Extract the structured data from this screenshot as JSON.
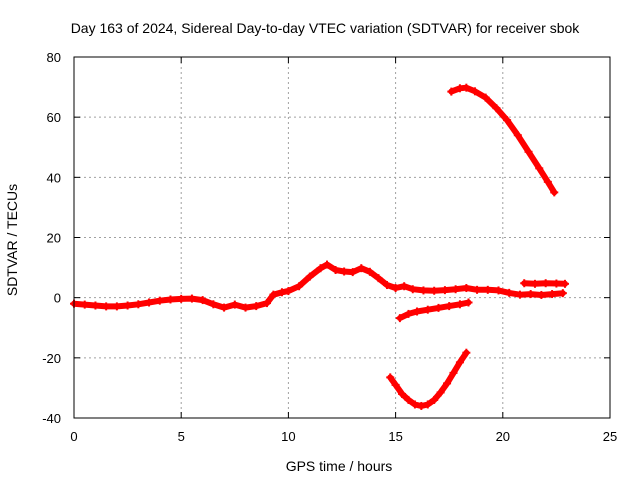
{
  "chart_data": {
    "type": "scatter",
    "title": "Day 163 of 2024, Sidereal Day-to-day VTEC variation (SDTVAR) for receiver sbok",
    "xlabel": "GPS time / hours",
    "ylabel": "SDTVAR / TECUs",
    "xlim": [
      0,
      25
    ],
    "ylim": [
      -40,
      80
    ],
    "xticks": [
      0,
      5,
      10,
      15,
      20,
      25
    ],
    "yticks": [
      -40,
      -20,
      0,
      20,
      40,
      60,
      80
    ],
    "grid": true,
    "series_color": "#ff0000",
    "series": [
      {
        "name": "main",
        "points": [
          [
            0.0,
            -2.0
          ],
          [
            0.5,
            -2.3
          ],
          [
            1.0,
            -2.6
          ],
          [
            1.5,
            -2.9
          ],
          [
            2.0,
            -2.9
          ],
          [
            2.5,
            -2.6
          ],
          [
            3.0,
            -2.2
          ],
          [
            3.5,
            -1.6
          ],
          [
            4.0,
            -1.0
          ],
          [
            4.5,
            -0.6
          ],
          [
            5.0,
            -0.4
          ],
          [
            5.5,
            -0.3
          ],
          [
            6.0,
            -0.8
          ],
          [
            6.5,
            -2.2
          ],
          [
            7.0,
            -3.3
          ],
          [
            7.5,
            -2.3
          ],
          [
            8.0,
            -3.3
          ],
          [
            8.5,
            -2.8
          ],
          [
            9.0,
            -1.8
          ],
          [
            9.3,
            1.0
          ],
          [
            9.7,
            1.8
          ],
          [
            10.0,
            2.2
          ],
          [
            10.5,
            3.8
          ],
          [
            11.0,
            7.0
          ],
          [
            11.5,
            9.8
          ],
          [
            11.8,
            11.0
          ],
          [
            12.2,
            9.2
          ],
          [
            12.6,
            8.7
          ],
          [
            13.0,
            8.5
          ],
          [
            13.4,
            9.8
          ],
          [
            13.8,
            8.6
          ],
          [
            14.2,
            6.5
          ],
          [
            14.6,
            4.2
          ],
          [
            15.0,
            3.2
          ],
          [
            15.4,
            3.8
          ],
          [
            15.8,
            2.8
          ],
          [
            16.3,
            2.4
          ],
          [
            16.8,
            2.3
          ],
          [
            17.3,
            2.5
          ],
          [
            17.8,
            2.8
          ],
          [
            18.3,
            3.2
          ],
          [
            18.8,
            2.6
          ],
          [
            19.3,
            2.6
          ],
          [
            19.8,
            2.4
          ],
          [
            20.3,
            1.6
          ],
          [
            20.8,
            1.0
          ],
          [
            21.3,
            1.2
          ],
          [
            21.8,
            0.9
          ],
          [
            22.3,
            1.2
          ],
          [
            22.8,
            1.5
          ]
        ]
      },
      {
        "name": "upper",
        "points": [
          [
            17.6,
            68.5
          ],
          [
            18.0,
            69.6
          ],
          [
            18.3,
            69.8
          ],
          [
            18.7,
            68.6
          ],
          [
            19.2,
            66.5
          ],
          [
            19.7,
            63.0
          ],
          [
            20.2,
            59.0
          ],
          [
            20.7,
            54.0
          ],
          [
            21.2,
            48.5
          ],
          [
            21.7,
            43.0
          ],
          [
            22.1,
            38.5
          ],
          [
            22.4,
            35.0
          ]
        ]
      },
      {
        "name": "flat-right",
        "points": [
          [
            21.0,
            4.8
          ],
          [
            21.5,
            4.6
          ],
          [
            22.0,
            4.8
          ],
          [
            22.5,
            4.7
          ],
          [
            22.9,
            4.6
          ]
        ]
      },
      {
        "name": "lower-short",
        "points": [
          [
            15.2,
            -6.8
          ],
          [
            15.6,
            -5.4
          ],
          [
            16.0,
            -4.6
          ],
          [
            16.5,
            -4.0
          ],
          [
            17.0,
            -3.4
          ],
          [
            17.5,
            -2.8
          ],
          [
            18.0,
            -2.2
          ],
          [
            18.4,
            -1.6
          ]
        ]
      },
      {
        "name": "lower-arc",
        "points": [
          [
            14.75,
            -26.5
          ],
          [
            15.0,
            -29.0
          ],
          [
            15.3,
            -32.0
          ],
          [
            15.6,
            -34.0
          ],
          [
            15.9,
            -35.5
          ],
          [
            16.2,
            -36.0
          ],
          [
            16.5,
            -35.5
          ],
          [
            16.8,
            -34.0
          ],
          [
            17.1,
            -31.5
          ],
          [
            17.4,
            -28.5
          ],
          [
            17.7,
            -25.0
          ],
          [
            18.0,
            -21.5
          ],
          [
            18.3,
            -18.3
          ]
        ]
      }
    ]
  }
}
